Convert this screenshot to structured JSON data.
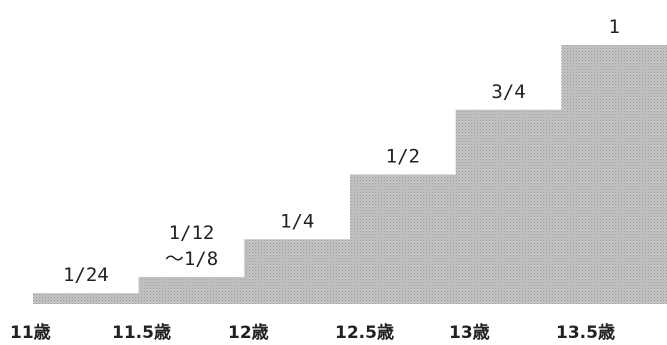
{
  "chart_data": {
    "type": "bar",
    "categories": [
      "11歳",
      "11.5歳",
      "12歳",
      "12.5歳",
      "13歳",
      "13.5歳"
    ],
    "values": [
      0.041667,
      0.104167,
      0.25,
      0.5,
      0.75,
      1
    ],
    "data_labels": [
      [
        "1/24"
      ],
      [
        "1/12",
        "～1/8"
      ],
      [
        "1/4"
      ],
      [
        "1/2"
      ],
      [
        "3/4"
      ],
      [
        "1"
      ]
    ],
    "ylim": [
      0,
      1
    ],
    "grid": false,
    "legend": "none",
    "bar_color": "#c4c4c4",
    "bar_texture_color": "#9a9a9a",
    "text_color": "#222222"
  }
}
